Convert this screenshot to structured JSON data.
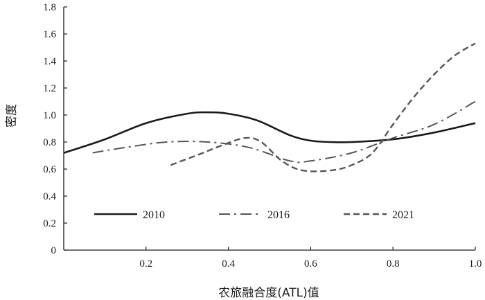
{
  "chart_data": {
    "type": "line",
    "xlabel": "农旅融合度(ATL)值",
    "ylabel": "密度",
    "xlim": [
      0.0,
      1.0
    ],
    "ylim": [
      0.0,
      1.8
    ],
    "x_ticks": [
      0.2,
      0.4,
      0.6,
      0.8,
      1.0
    ],
    "x_tick_labels": [
      "0.2",
      "0.4",
      "0.6",
      "0.8",
      "1.0"
    ],
    "y_ticks": [
      0.0,
      0.2,
      0.4,
      0.6,
      0.8,
      1.0,
      1.2,
      1.4,
      1.6,
      1.8
    ],
    "y_tick_labels": [
      "0",
      "0.2",
      "0.4",
      "0.6",
      "0.8",
      "1.0",
      "1.2",
      "1.4",
      "1.6",
      "1.8"
    ],
    "legend_position": "bottom-inside",
    "grid": false,
    "series": [
      {
        "name": "2010",
        "dash": "solid",
        "color": "#1a1a1a",
        "points": [
          [
            0.0,
            0.72
          ],
          [
            0.1,
            0.82
          ],
          [
            0.2,
            0.94
          ],
          [
            0.3,
            1.01
          ],
          [
            0.35,
            1.02
          ],
          [
            0.4,
            1.01
          ],
          [
            0.47,
            0.96
          ],
          [
            0.55,
            0.85
          ],
          [
            0.6,
            0.81
          ],
          [
            0.65,
            0.8
          ],
          [
            0.7,
            0.8
          ],
          [
            0.8,
            0.82
          ],
          [
            0.9,
            0.87
          ],
          [
            1.0,
            0.94
          ]
        ]
      },
      {
        "name": "2016",
        "dash": "dash-dot",
        "color": "#555555",
        "points": [
          [
            0.07,
            0.72
          ],
          [
            0.15,
            0.76
          ],
          [
            0.25,
            0.8
          ],
          [
            0.35,
            0.8
          ],
          [
            0.45,
            0.76
          ],
          [
            0.55,
            0.66
          ],
          [
            0.6,
            0.66
          ],
          [
            0.7,
            0.72
          ],
          [
            0.8,
            0.83
          ],
          [
            0.9,
            0.93
          ],
          [
            1.0,
            1.1
          ]
        ]
      },
      {
        "name": "2021",
        "dash": "dashed",
        "color": "#555555",
        "points": [
          [
            0.26,
            0.63
          ],
          [
            0.33,
            0.71
          ],
          [
            0.38,
            0.77
          ],
          [
            0.44,
            0.83
          ],
          [
            0.48,
            0.8
          ],
          [
            0.53,
            0.66
          ],
          [
            0.58,
            0.59
          ],
          [
            0.65,
            0.59
          ],
          [
            0.7,
            0.63
          ],
          [
            0.75,
            0.72
          ],
          [
            0.8,
            0.93
          ],
          [
            0.85,
            1.13
          ],
          [
            0.9,
            1.3
          ],
          [
            0.95,
            1.44
          ],
          [
            1.0,
            1.53
          ]
        ]
      }
    ]
  }
}
